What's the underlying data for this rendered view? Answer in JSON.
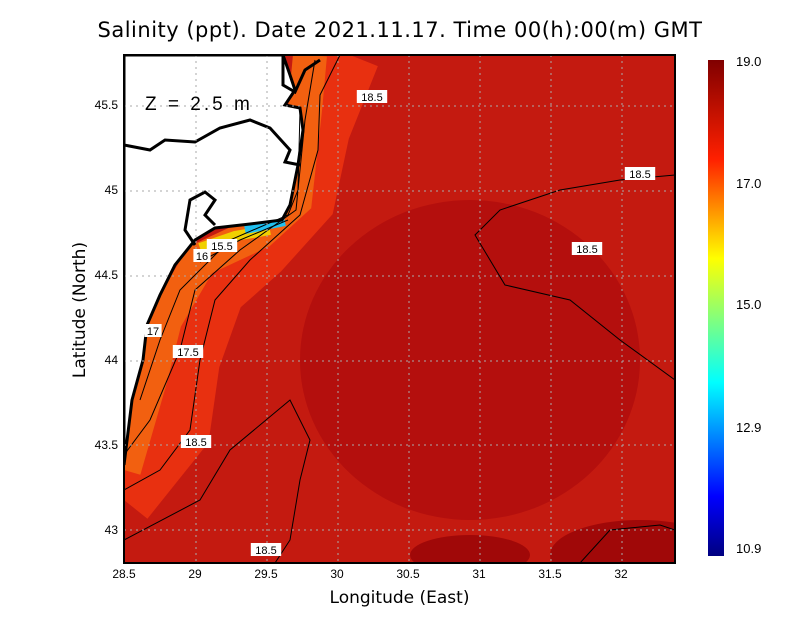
{
  "title": "Salinity (ppt). Date 2021.11.17. Time 00(h):00(m) GMT",
  "depth_label": "Z = 2.5 m",
  "x_axis": {
    "label": "Longitude (East)",
    "ticks": [
      "28.5",
      "29",
      "29.5",
      "30",
      "30.5",
      "31",
      "31.5",
      "32"
    ]
  },
  "y_axis": {
    "label": "Latitude (North)",
    "ticks": [
      "45.5",
      "45",
      "44.5",
      "44",
      "43.5",
      "43"
    ]
  },
  "colorbar": {
    "labels": [
      "19.0",
      "17.0",
      "15.0",
      "12.9",
      "10.9"
    ],
    "min": 10.9,
    "max": 19.0,
    "colormap": "jet"
  },
  "contour_labels": [
    "18.5",
    "18.5",
    "18.5",
    "18.5",
    "18.5",
    "15.5",
    "16",
    "17",
    "17.5"
  ],
  "colors": {
    "land": "#ffffff",
    "coast": "#000000",
    "open_sea": "#b80c0c",
    "grid": "#aaaaaa"
  }
}
